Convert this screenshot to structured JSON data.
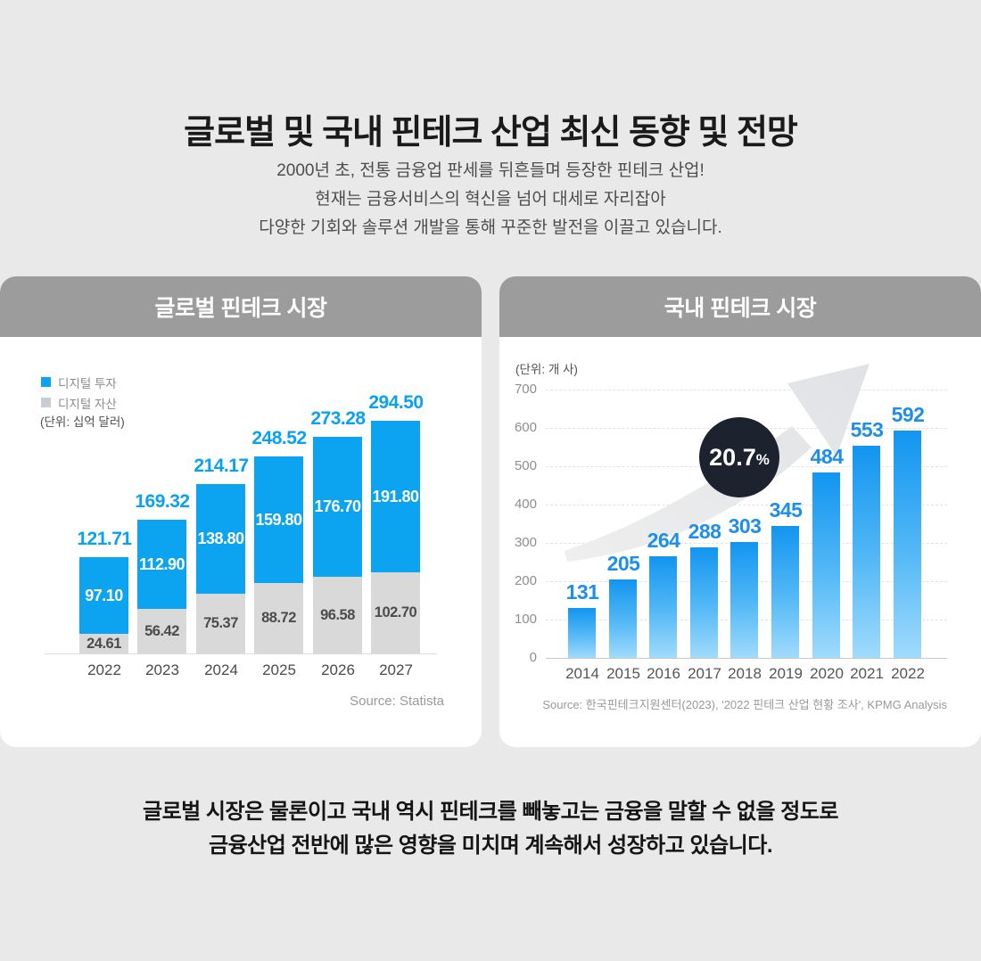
{
  "page": {
    "title": "글로벌 및 국내 핀테크 산업 최신 동향 및 전망",
    "subtitle_lines": [
      "2000년 초, 전통 금융업 판세를 뒤흔들며 등장한 핀테크 산업!",
      "현재는 금융서비스의 혁신을 넘어 대세로 자리잡아",
      "다양한 기회와 솔루션 개발을 통해 꾸준한 발전을 이끌고 있습니다."
    ],
    "footer_lines": [
      "글로벌 시장은 물론이고 국내 역시 핀테크를 빼놓고는 금융을 말할 수 없을 정도로",
      "금융산업 전반에 많은 영향을 미치며 계속해서 성장하고 있습니다."
    ]
  },
  "colors": {
    "page_bg": "#e9e9e9",
    "card_bg": "#ffffff",
    "card_header_bg": "#9c9c9c",
    "accent_blue": "#0ca3f0",
    "stacked_gray": "#d9d9d9",
    "value_label_blue_left": "#09a2f2",
    "value_label_blue_right": "#1e8eeb",
    "badge_bg": "#1c232e",
    "arrow_gray": "#e5e6e8"
  },
  "chart_data": [
    {
      "type": "bar",
      "variant": "stacked",
      "title": "글로벌 핀테크 시장",
      "unit": "(단위: 십억 달러)",
      "categories": [
        "2022",
        "2023",
        "2024",
        "2025",
        "2026",
        "2027"
      ],
      "series": [
        {
          "name": "디지털 투자",
          "color": "#0ca3f0",
          "swatch_color": "#0ca3f0",
          "values": [
            97.1,
            112.9,
            138.8,
            159.8,
            176.7,
            191.8
          ],
          "value_labels": [
            "97.10",
            "112.90",
            "138.80",
            "159.80",
            "176.70",
            "191.80"
          ]
        },
        {
          "name": "디지털 자산",
          "color": "#d9d9d9",
          "swatch_color": "#c9cdd1",
          "values": [
            24.61,
            56.42,
            75.37,
            88.72,
            96.58,
            102.7
          ],
          "value_labels": [
            "24.61",
            "56.42",
            "75.37",
            "88.72",
            "96.58",
            "102.70"
          ]
        }
      ],
      "totals": [
        "121.71",
        "169.32",
        "214.17",
        "248.52",
        "273.28",
        "294.50"
      ],
      "legend_position": "top-left",
      "grid": false,
      "source": "Source: Statista"
    },
    {
      "type": "bar",
      "title": "국내 핀테크 시장",
      "unit": "(단위: 개 사)",
      "categories": [
        "2014",
        "2015",
        "2016",
        "2017",
        "2018",
        "2019",
        "2020",
        "2021",
        "2022"
      ],
      "values": [
        131,
        205,
        264,
        288,
        303,
        345,
        484,
        553,
        592
      ],
      "value_labels": [
        "131",
        "205",
        "264",
        "288",
        "303",
        "345",
        "484",
        "553",
        "592"
      ],
      "ylim": [
        0,
        700
      ],
      "yticks": [
        0,
        100,
        200,
        300,
        400,
        500,
        600,
        700
      ],
      "grid": true,
      "bar_gradient": [
        "#1295f0",
        "#55b9f6",
        "#a0dbfc"
      ],
      "annotation_value": "20.7",
      "annotation_suffix": "%",
      "source": "Source: 한국핀테크지원센터(2023), '2022 핀테크 산업 현황 조사', KPMG Analysis"
    }
  ]
}
